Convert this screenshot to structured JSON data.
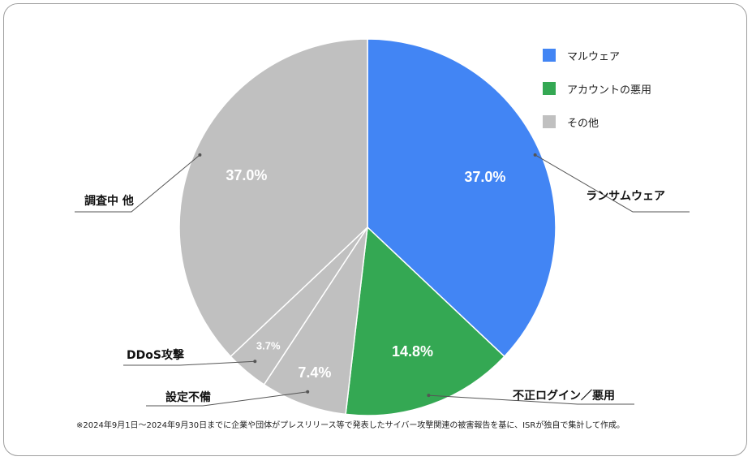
{
  "chart_data": {
    "type": "pie",
    "slices": [
      {
        "label": "ランサムウェア",
        "value": 37.0,
        "value_label": "37.0%",
        "color": "#4285f4"
      },
      {
        "label": "不正ログイン／悪用",
        "value": 14.8,
        "value_label": "14.8%",
        "color": "#34a853"
      },
      {
        "label": "設定不備",
        "value": 7.4,
        "value_label": "7.4%",
        "color": "#c0c0c0"
      },
      {
        "label": "DDoS攻撃",
        "value": 3.7,
        "value_label": "3.7%",
        "color": "#c0c0c0"
      },
      {
        "label": "調査中 他",
        "value": 37.0,
        "value_label": "37.0%",
        "color": "#c0c0c0"
      }
    ],
    "legend": {
      "placement": "top-right",
      "items": [
        {
          "label": "マルウェア",
          "color": "#4285f4"
        },
        {
          "label": "アカウントの悪用",
          "color": "#34a853"
        },
        {
          "label": "その他",
          "color": "#c0c0c0"
        }
      ]
    },
    "start_angle": "12 o'clock",
    "direction": "clockwise"
  },
  "footnote": "※2024年9月1日～2024年9月30日までに企業や団体がプレスリリース等で発表したサイバー攻撃関連の被害報告を基に、ISRが独自で集計して作成。"
}
